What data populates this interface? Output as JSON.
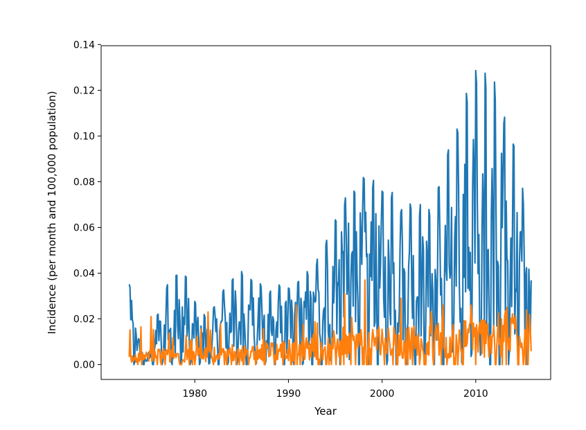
{
  "chart_data": {
    "type": "line",
    "title": "",
    "xlabel": "Year",
    "ylabel": "Incidence (per month and 100,000 population)",
    "xlim": [
      1970.0,
      2018.0
    ],
    "ylim": [
      -0.0065,
      0.1395
    ],
    "xticks": [
      1980,
      1990,
      2000,
      2010
    ],
    "yticks": [
      0.0,
      0.02,
      0.04,
      0.06,
      0.08,
      0.1,
      0.12,
      0.14
    ],
    "ytick_labels": [
      "0.00",
      "0.02",
      "0.04",
      "0.06",
      "0.08",
      "0.10",
      "0.12",
      "0.14"
    ],
    "grid": false,
    "series": [
      {
        "color": "#1f77b4",
        "sampling": "monthly",
        "start": 1973.0,
        "end": 2015.9,
        "upper_envelope": {
          "x": [
            1973.0,
            1973.3,
            1973.6,
            1974.0,
            1974.5,
            1975.0,
            1975.5,
            1976.0,
            1976.5,
            1977.0,
            1977.5,
            1978.0,
            1978.5,
            1979.0,
            1979.5,
            1980.0,
            1980.5,
            1981.0,
            1981.5,
            1982.0,
            1982.5,
            1983.0,
            1983.5,
            1984.0,
            1984.5,
            1985.0,
            1985.5,
            1986.0,
            1986.5,
            1987.0,
            1987.5,
            1988.0,
            1988.5,
            1989.0,
            1989.5,
            1990.0,
            1990.5,
            1991.0,
            1991.5,
            1992.0,
            1992.5,
            1993.0,
            1993.5,
            1994.0,
            1994.5,
            1995.0,
            1995.5,
            1996.0,
            1996.5,
            1997.0,
            1997.5,
            1998.0,
            1998.5,
            1999.0,
            1999.5,
            2000.0,
            2000.5,
            2001.0,
            2001.5,
            2002.0,
            2002.5,
            2003.0,
            2003.5,
            2004.0,
            2004.5,
            2005.0,
            2005.5,
            2006.0,
            2006.5,
            2007.0,
            2007.5,
            2008.0,
            2008.5,
            2009.0,
            2009.5,
            2010.0,
            2010.5,
            2011.0,
            2011.5,
            2012.0,
            2012.5,
            2013.0,
            2013.5,
            2014.0,
            2014.5,
            2015.0,
            2015.5,
            2015.9
          ],
          "y": [
            0.036,
            0.034,
            0.025,
            0.012,
            0.006,
            0.004,
            0.012,
            0.022,
            0.03,
            0.035,
            0.039,
            0.041,
            0.042,
            0.04,
            0.035,
            0.028,
            0.024,
            0.022,
            0.023,
            0.025,
            0.029,
            0.033,
            0.036,
            0.039,
            0.041,
            0.041,
            0.04,
            0.039,
            0.037,
            0.036,
            0.034,
            0.033,
            0.035,
            0.035,
            0.034,
            0.035,
            0.036,
            0.037,
            0.039,
            0.041,
            0.043,
            0.046,
            0.05,
            0.055,
            0.06,
            0.065,
            0.07,
            0.074,
            0.078,
            0.08,
            0.082,
            0.083,
            0.082,
            0.083,
            0.08,
            0.077,
            0.074,
            0.078,
            0.075,
            0.071,
            0.067,
            0.072,
            0.072,
            0.07,
            0.073,
            0.068,
            0.07,
            0.078,
            0.085,
            0.093,
            0.1,
            0.107,
            0.113,
            0.119,
            0.125,
            0.131,
            0.133,
            0.128,
            0.13,
            0.125,
            0.12,
            0.11,
            0.105,
            0.1,
            0.092,
            0.078,
            0.06,
            0.051
          ]
        }
      },
      {
        "color": "#ff7f0e",
        "sampling": "monthly",
        "start": 1973.0,
        "end": 2015.9,
        "baseline": {
          "x": [
            1973.0,
            1976.0,
            1980.0,
            1985.0,
            1990.0,
            1993.0,
            1996.0,
            2000.0,
            2003.0,
            2006.0,
            2009.0,
            2012.0,
            2015.0,
            2015.9
          ],
          "y": [
            0.002,
            0.004,
            0.004,
            0.005,
            0.006,
            0.007,
            0.009,
            0.009,
            0.009,
            0.01,
            0.011,
            0.012,
            0.014,
            0.015
          ]
        },
        "peaks": [
          {
            "x": 1975.3,
            "y": 0.021
          },
          {
            "x": 1981.4,
            "y": 0.023
          },
          {
            "x": 1990.8,
            "y": 0.026
          },
          {
            "x": 1996.0,
            "y": 0.031
          },
          {
            "x": 1998.2,
            "y": 0.037
          },
          {
            "x": 2002.0,
            "y": 0.029
          },
          {
            "x": 2006.5,
            "y": 0.026
          },
          {
            "x": 2009.5,
            "y": 0.026
          },
          {
            "x": 2013.3,
            "y": 0.025
          }
        ]
      }
    ]
  }
}
